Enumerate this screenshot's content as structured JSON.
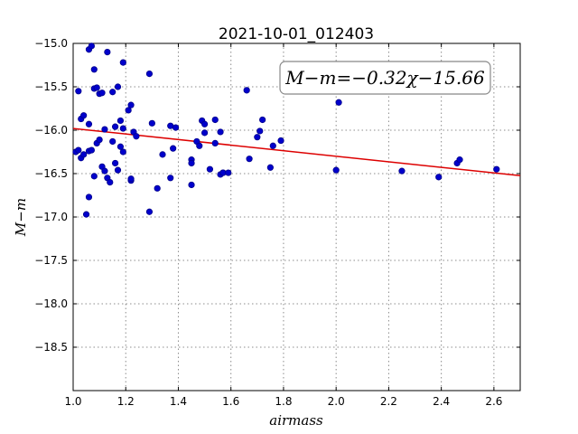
{
  "chart_data": {
    "type": "scatter",
    "title": "2021-10-01_012403",
    "xlabel": "airmass",
    "ylabel": "M−m",
    "xlim": [
      1.0,
      2.7
    ],
    "ylim": [
      -15.0,
      -19.0
    ],
    "y_inverted": true,
    "x_ticks": [
      1.0,
      1.2,
      1.4,
      1.6,
      1.8,
      2.0,
      2.2,
      2.4,
      2.6
    ],
    "x_tick_labels": [
      "1.0",
      "1.2",
      "1.4",
      "1.6",
      "1.8",
      "2.0",
      "2.2",
      "2.4",
      "2.6"
    ],
    "y_ticks": [
      -15.0,
      -15.5,
      -16.0,
      -16.5,
      -17.0,
      -17.5,
      -18.0,
      -18.5
    ],
    "y_tick_labels": [
      "−15.0",
      "−15.5",
      "−16.0",
      "−16.5",
      "−17.0",
      "−17.5",
      "−18.0",
      "−18.5"
    ],
    "grid": true,
    "fit_label": "M−m=−0.32χ−15.66",
    "fit": {
      "slope": -0.32,
      "intercept": -15.66
    },
    "colors": {
      "points": "#0000cc",
      "fit_line": "#dd0000"
    },
    "series": [
      {
        "x": [
          1.01,
          1.02,
          1.02,
          1.03,
          1.03,
          1.04,
          1.04,
          1.05,
          1.06,
          1.06,
          1.06,
          1.06,
          1.07,
          1.07,
          1.08,
          1.08,
          1.08,
          1.09,
          1.09,
          1.1,
          1.1,
          1.11,
          1.11,
          1.12,
          1.12,
          1.13,
          1.13,
          1.14,
          1.15,
          1.15,
          1.16,
          1.16,
          1.17,
          1.17,
          1.18,
          1.18,
          1.19,
          1.19,
          1.19,
          1.21,
          1.22,
          1.22,
          1.22,
          1.23,
          1.24,
          1.29,
          1.29,
          1.3,
          1.32,
          1.34,
          1.37,
          1.37,
          1.38,
          1.39,
          1.45,
          1.45,
          1.45,
          1.47,
          1.48,
          1.49,
          1.5,
          1.5,
          1.52,
          1.54,
          1.54,
          1.56,
          1.56,
          1.57,
          1.57,
          1.59,
          1.66,
          1.67,
          1.7,
          1.71,
          1.72,
          1.75,
          1.76,
          1.79,
          2.0,
          2.01,
          2.25,
          2.39,
          2.46,
          2.47,
          2.61
        ],
        "y": [
          -16.25,
          -15.55,
          -16.23,
          -16.32,
          -15.87,
          -15.83,
          -16.28,
          -16.97,
          -15.07,
          -16.77,
          -15.93,
          -16.24,
          -15.03,
          -16.23,
          -15.3,
          -16.53,
          -15.52,
          -16.15,
          -15.51,
          -15.58,
          -16.11,
          -15.57,
          -16.42,
          -16.47,
          -15.99,
          -16.55,
          -15.1,
          -16.6,
          -15.56,
          -16.13,
          -16.38,
          -15.96,
          -15.5,
          -16.46,
          -16.19,
          -15.89,
          -16.25,
          -15.22,
          -15.98,
          -15.77,
          -16.58,
          -15.71,
          -16.56,
          -16.02,
          -16.07,
          -16.94,
          -15.35,
          -15.92,
          -16.67,
          -16.28,
          -15.95,
          -16.55,
          -16.21,
          -15.97,
          -16.63,
          -16.34,
          -16.38,
          -16.13,
          -16.18,
          -15.89,
          -15.93,
          -16.03,
          -16.45,
          -16.15,
          -15.88,
          -16.51,
          -16.02,
          -16.49,
          -16.49,
          -16.49,
          -15.54,
          -16.33,
          -16.08,
          -16.01,
          -15.88,
          -16.43,
          -16.18,
          -16.12,
          -16.46,
          -15.68,
          -16.47,
          -16.54,
          -16.38,
          -16.34,
          -16.45
        ]
      }
    ]
  }
}
